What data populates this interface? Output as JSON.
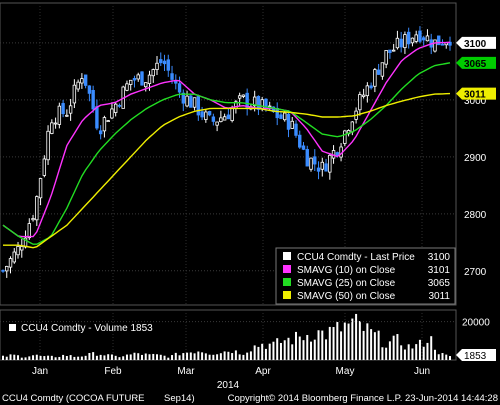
{
  "chart_data": [
    {
      "type": "candlestick",
      "instrument": "CCU4 Comdty",
      "y_ticks": [
        2700,
        2800,
        2900,
        3000,
        3100
      ],
      "ylim": [
        2640,
        3170
      ],
      "x_month_labels": [
        "Jan",
        "Feb",
        "Mar",
        "Apr",
        "May",
        "Jun"
      ],
      "x_year_label": "2014",
      "grid": true,
      "legend_position": "bottom-right",
      "legend": [
        {
          "label": "CCU4 Comdty - Last Price",
          "value": "3100",
          "color": "#ffffff"
        },
        {
          "label": "SMAVG (10) on Close",
          "value": "3101",
          "color": "#ff33ff"
        },
        {
          "label": "SMAVG (25) on Close",
          "value": "3065",
          "color": "#22dd22"
        },
        {
          "label": "SMAVG (50) on Close",
          "value": "3011",
          "color": "#eeee00"
        }
      ],
      "value_tags": [
        {
          "text": "3100",
          "value": 3100,
          "bg": "#ffffff",
          "fg": "#000000"
        },
        {
          "text": "3065",
          "value": 3065,
          "bg": "#00cc00",
          "fg": "#000000"
        },
        {
          "text": "3011",
          "value": 3011,
          "bg": "#eeee00",
          "fg": "#000000"
        }
      ],
      "x_months_approx": [
        0.2,
        1.2,
        2.2,
        3.2,
        4.2,
        5.2,
        5.7
      ],
      "close_anchors": [
        2700,
        2740,
        2810,
        2970,
        2980,
        3050,
        2950,
        2990,
        3035,
        3040,
        3070,
        3015,
        2990,
        2960,
        2975,
        3000,
        2990,
        2975,
        2960,
        2900,
        2880,
        2920,
        2980,
        3030,
        3080,
        3100,
        3120,
        3100,
        3110
      ],
      "series": [
        {
          "name": "SMAVG (10) on Close",
          "values": [
            2780,
            2760,
            2760,
            2830,
            2920,
            2965,
            2990,
            2995,
            3010,
            3020,
            3030,
            3035,
            3010,
            3000,
            2985,
            2990,
            2985,
            2985,
            2980,
            2950,
            2910,
            2900,
            2930,
            2980,
            3030,
            3070,
            3090,
            3100,
            3101
          ]
        },
        {
          "name": "SMAVG (25) on Close",
          "values": [
            2780,
            2760,
            2745,
            2760,
            2810,
            2870,
            2910,
            2940,
            2965,
            2985,
            3000,
            3010,
            3010,
            3000,
            2995,
            2995,
            2990,
            2985,
            2980,
            2960,
            2940,
            2935,
            2945,
            2965,
            2990,
            3020,
            3045,
            3060,
            3065
          ]
        },
        {
          "name": "SMAVG (50) on Close",
          "values": [
            2745,
            2745,
            2740,
            2760,
            2780,
            2810,
            2840,
            2870,
            2900,
            2930,
            2955,
            2970,
            2980,
            2985,
            2985,
            2985,
            2985,
            2980,
            2978,
            2975,
            2970,
            2970,
            2972,
            2980,
            2990,
            2998,
            3005,
            3010,
            3011
          ]
        }
      ]
    },
    {
      "type": "bar",
      "title": "CCU4 Comdty - Volume 1853",
      "y_ticks": [
        20000
      ],
      "current_value_tag": "1853",
      "approx_values_thousands": [
        2,
        3,
        2,
        3,
        2,
        2,
        3,
        2,
        3,
        4,
        3,
        2,
        3,
        4,
        3,
        3,
        2,
        4,
        5,
        6,
        4,
        5,
        6,
        4,
        8,
        10,
        9,
        12,
        13,
        15,
        17,
        16,
        18,
        21,
        22,
        18,
        14,
        10,
        12,
        8,
        9,
        14,
        4,
        2
      ]
    }
  ],
  "footer": {
    "left": "CCU4 Comdty (COCOA FUTURE",
    "middle": "Sep14)",
    "right": "Copyright© 2014 Bloomberg Finance L.P.    23-Jun-2014 14:44:28"
  }
}
